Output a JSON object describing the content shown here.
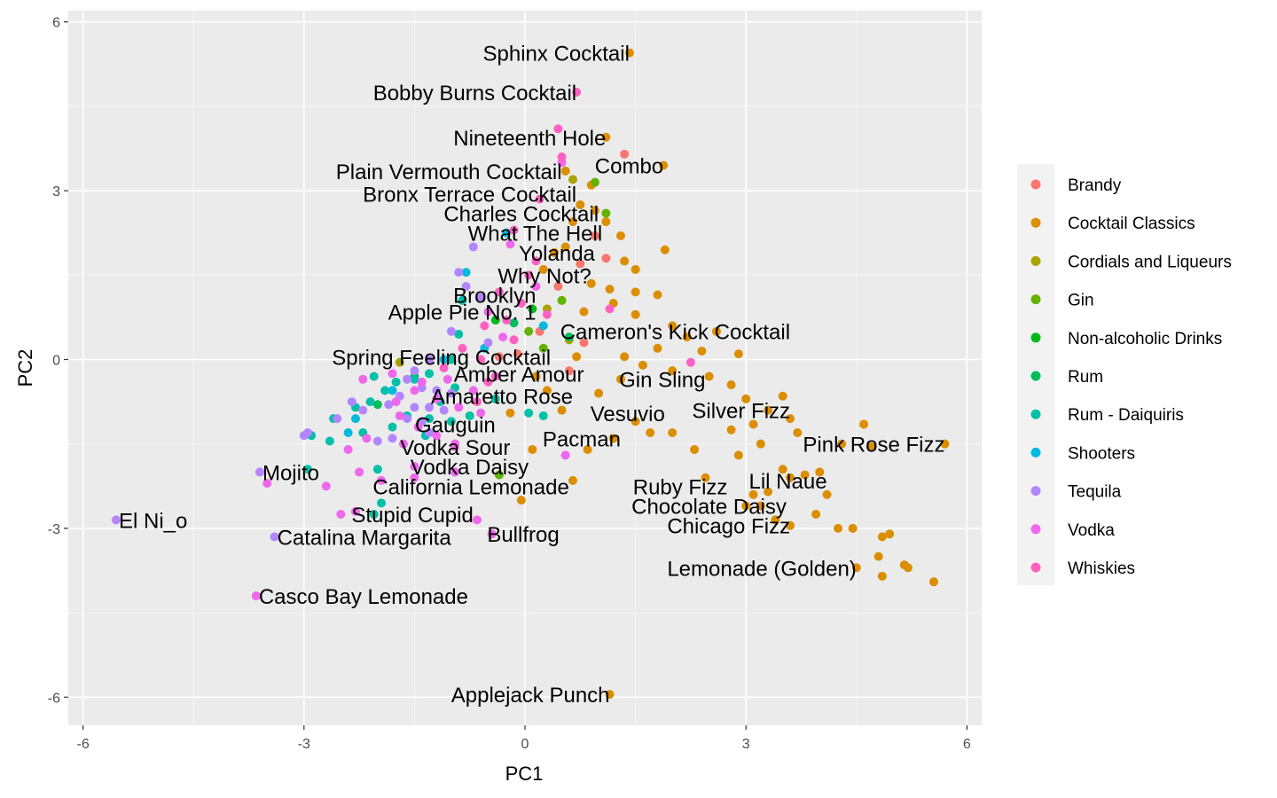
{
  "chart_data": {
    "type": "scatter",
    "title": "",
    "xlabel": "PC1",
    "ylabel": "PC2",
    "xlim": [
      -6.2,
      6.2
    ],
    "ylim": [
      -6.5,
      6.2
    ],
    "x_ticks": [
      -6,
      -3,
      0,
      3,
      6
    ],
    "y_ticks": [
      -6,
      -3,
      0,
      3,
      6
    ],
    "grid": true,
    "legend_position": "right",
    "series": [
      {
        "name": "Brandy",
        "color": "#F8766D",
        "points": [
          [
            1.35,
            3.65
          ],
          [
            0.95,
            2.2
          ],
          [
            0.75,
            1.7
          ],
          [
            0.45,
            1.3
          ],
          [
            0.8,
            0.3
          ],
          [
            -0.35,
            0.05
          ],
          [
            0.6,
            -0.2
          ],
          [
            1.1,
            1.8
          ],
          [
            0.2,
            0.5
          ],
          [
            -0.1,
            0.1
          ]
        ]
      },
      {
        "name": "Cocktail Classics",
        "color": "#DB8E00",
        "points": [
          [
            1.42,
            5.45
          ],
          [
            1.1,
            3.95
          ],
          [
            1.88,
            3.45
          ],
          [
            0.55,
            3.35
          ],
          [
            0.9,
            3.1
          ],
          [
            1.35,
            1.75
          ],
          [
            0.75,
            2.75
          ],
          [
            1.9,
            1.95
          ],
          [
            1.3,
            2.2
          ],
          [
            1.5,
            1.6
          ],
          [
            1.8,
            1.15
          ],
          [
            1.5,
            1.2
          ],
          [
            1.2,
            1.0
          ],
          [
            0.8,
            0.85
          ],
          [
            1.5,
            0.8
          ],
          [
            2.0,
            0.6
          ],
          [
            2.6,
            0.5
          ],
          [
            2.2,
            0.4
          ],
          [
            1.8,
            0.2
          ],
          [
            2.4,
            0.15
          ],
          [
            2.9,
            0.1
          ],
          [
            1.35,
            0.05
          ],
          [
            1.6,
            -0.1
          ],
          [
            2.0,
            -0.2
          ],
          [
            2.5,
            -0.3
          ],
          [
            2.8,
            -0.45
          ],
          [
            3.0,
            -0.7
          ],
          [
            3.5,
            -0.65
          ],
          [
            3.3,
            -0.9
          ],
          [
            3.6,
            -1.05
          ],
          [
            3.7,
            -1.3
          ],
          [
            4.6,
            -1.15
          ],
          [
            5.7,
            -1.5
          ],
          [
            3.2,
            -1.5
          ],
          [
            4.3,
            -1.5
          ],
          [
            4.7,
            -1.55
          ],
          [
            3.5,
            -1.95
          ],
          [
            3.6,
            -2.1
          ],
          [
            3.3,
            -2.35
          ],
          [
            3.1,
            -2.4
          ],
          [
            4.1,
            -2.4
          ],
          [
            4.0,
            -2.0
          ],
          [
            3.2,
            -2.6
          ],
          [
            3.4,
            -2.85
          ],
          [
            3.95,
            -2.75
          ],
          [
            4.25,
            -3.0
          ],
          [
            4.45,
            -3.0
          ],
          [
            4.85,
            -3.15
          ],
          [
            4.95,
            -3.1
          ],
          [
            4.8,
            -3.5
          ],
          [
            5.15,
            -3.65
          ],
          [
            5.2,
            -3.7
          ],
          [
            4.5,
            -3.7
          ],
          [
            4.85,
            -3.85
          ],
          [
            5.55,
            -3.95
          ],
          [
            3.6,
            -2.95
          ],
          [
            1.15,
            -5.95
          ],
          [
            -0.05,
            -2.5
          ],
          [
            0.65,
            -2.15
          ],
          [
            0.1,
            -1.6
          ],
          [
            1.5,
            -1.1
          ],
          [
            1.0,
            -0.6
          ],
          [
            0.5,
            -0.9
          ],
          [
            2.0,
            -1.3
          ],
          [
            2.3,
            -1.6
          ],
          [
            1.7,
            -1.3
          ],
          [
            0.3,
            -0.55
          ],
          [
            0.7,
            0.05
          ],
          [
            0.9,
            1.35
          ],
          [
            0.55,
            2.0
          ],
          [
            1.1,
            2.45
          ],
          [
            0.95,
            2.65
          ],
          [
            0.65,
            2.45
          ],
          [
            0.4,
            1.9
          ],
          [
            0.25,
            1.6
          ],
          [
            1.15,
            1.25
          ],
          [
            2.8,
            -1.25
          ],
          [
            2.9,
            -1.7
          ],
          [
            3.1,
            -1.15
          ],
          [
            1.3,
            -0.35
          ],
          [
            0.15,
            -0.3
          ],
          [
            -0.2,
            -0.95
          ],
          [
            0.85,
            -1.6
          ],
          [
            1.2,
            -1.4
          ],
          [
            2.45,
            -2.1
          ],
          [
            3.0,
            -2.6
          ],
          [
            3.8,
            -2.05
          ]
        ]
      },
      {
        "name": "Cordials and Liqueurs",
        "color": "#AAA200",
        "points": [
          [
            0.65,
            3.2
          ],
          [
            0.3,
            0.9
          ],
          [
            0.6,
            0.35
          ],
          [
            -1.7,
            -0.05
          ]
        ]
      },
      {
        "name": "Gin",
        "color": "#64B200",
        "points": [
          [
            0.95,
            3.15
          ],
          [
            1.1,
            2.6
          ],
          [
            0.5,
            1.05
          ],
          [
            -0.35,
            -2.05
          ],
          [
            0.05,
            0.5
          ],
          [
            0.25,
            0.2
          ]
        ]
      },
      {
        "name": "Non-alcoholic Drinks",
        "color": "#00B81B",
        "points": [
          [
            -0.4,
            0.7
          ],
          [
            0.1,
            0.9
          ]
        ]
      },
      {
        "name": "Rum",
        "color": "#00BD5C",
        "points": [
          [
            0.6,
            0.4
          ],
          [
            -0.15,
            0.65
          ],
          [
            -2.0,
            -0.8
          ],
          [
            -1.5,
            -0.3
          ]
        ]
      },
      {
        "name": "Rum - Daiquiris",
        "color": "#00C1A7",
        "points": [
          [
            -0.85,
            1.05
          ],
          [
            -0.9,
            0.45
          ],
          [
            -1.0,
            0.0
          ],
          [
            -1.3,
            -0.25
          ],
          [
            -1.5,
            -0.35
          ],
          [
            -1.75,
            -0.4
          ],
          [
            -1.9,
            -0.55
          ],
          [
            -2.1,
            -0.75
          ],
          [
            -2.3,
            -0.85
          ],
          [
            -2.6,
            -1.05
          ],
          [
            -2.9,
            -1.35
          ],
          [
            -2.65,
            -1.45
          ],
          [
            -2.2,
            -1.3
          ],
          [
            -1.8,
            -1.2
          ],
          [
            -1.6,
            -1.0
          ],
          [
            -1.3,
            -1.05
          ],
          [
            -1.0,
            -1.1
          ],
          [
            -0.75,
            -1.0
          ],
          [
            -2.0,
            -1.95
          ],
          [
            -1.95,
            -2.55
          ],
          [
            -2.05,
            -2.75
          ],
          [
            -2.95,
            -1.95
          ],
          [
            -0.95,
            -0.5
          ],
          [
            -0.4,
            -0.7
          ],
          [
            -1.15,
            -0.75
          ],
          [
            -1.35,
            -1.35
          ],
          [
            0.05,
            -0.95
          ],
          [
            0.25,
            -1.0
          ],
          [
            -2.05,
            -0.3
          ]
        ]
      },
      {
        "name": "Shooters",
        "color": "#00BADE",
        "points": [
          [
            -0.25,
            2.25
          ],
          [
            -0.8,
            1.55
          ],
          [
            0.25,
            0.6
          ],
          [
            -1.1,
            0.0
          ],
          [
            -1.8,
            -0.55
          ],
          [
            -2.3,
            -1.05
          ],
          [
            -2.4,
            -1.3
          ],
          [
            -0.55,
            0.2
          ]
        ]
      },
      {
        "name": "Tequila",
        "color": "#B385FF",
        "points": [
          [
            -0.7,
            2.0
          ],
          [
            -0.9,
            1.55
          ],
          [
            -0.8,
            1.3
          ],
          [
            -0.6,
            1.1
          ],
          [
            -1.0,
            0.5
          ],
          [
            -0.5,
            0.3
          ],
          [
            -1.3,
            0.0
          ],
          [
            -1.5,
            -0.2
          ],
          [
            -1.6,
            -0.35
          ],
          [
            -1.4,
            -0.5
          ],
          [
            -1.2,
            -0.55
          ],
          [
            -1.0,
            -0.6
          ],
          [
            -1.7,
            -0.65
          ],
          [
            -1.85,
            -0.8
          ],
          [
            -1.5,
            -0.85
          ],
          [
            -1.3,
            -0.85
          ],
          [
            -1.1,
            -0.9
          ],
          [
            -1.6,
            -1.05
          ],
          [
            -1.4,
            -1.1
          ],
          [
            -2.2,
            -0.9
          ],
          [
            -2.35,
            -0.75
          ],
          [
            -2.55,
            -1.05
          ],
          [
            -2.95,
            -1.3
          ],
          [
            -3.0,
            -1.35
          ],
          [
            -3.6,
            -2.0
          ],
          [
            -5.55,
            -2.85
          ],
          [
            -3.4,
            -3.15
          ],
          [
            -2.0,
            -1.45
          ],
          [
            -1.8,
            -1.4
          ],
          [
            -1.3,
            -1.3
          ]
        ]
      },
      {
        "name": "Vodka",
        "color": "#EF67EB",
        "points": [
          [
            0.5,
            3.5
          ],
          [
            -0.2,
            2.05
          ],
          [
            0.15,
            1.3
          ],
          [
            -0.5,
            0.85
          ],
          [
            -0.3,
            0.4
          ],
          [
            -1.8,
            -0.25
          ],
          [
            -1.5,
            -0.55
          ],
          [
            -1.2,
            -0.7
          ],
          [
            -0.9,
            -0.85
          ],
          [
            -0.6,
            -0.95
          ],
          [
            -1.7,
            -1.0
          ],
          [
            -1.45,
            -1.2
          ],
          [
            -1.2,
            -1.35
          ],
          [
            -0.95,
            -1.5
          ],
          [
            -1.65,
            -1.5
          ],
          [
            -2.15,
            -1.4
          ],
          [
            -2.4,
            -1.6
          ],
          [
            -2.25,
            -2.0
          ],
          [
            -1.95,
            -2.15
          ],
          [
            -3.5,
            -2.2
          ],
          [
            -2.7,
            -2.25
          ],
          [
            -2.3,
            -2.7
          ],
          [
            -2.5,
            -2.75
          ],
          [
            -3.65,
            -4.2
          ],
          [
            -1.5,
            -1.9
          ],
          [
            -1.5,
            -2.1
          ],
          [
            -0.95,
            -2.0
          ],
          [
            -0.45,
            -3.1
          ],
          [
            -0.65,
            -2.85
          ],
          [
            -0.95,
            -1.55
          ],
          [
            0.55,
            -1.7
          ],
          [
            -2.2,
            -0.35
          ],
          [
            -1.4,
            -0.4
          ],
          [
            -1.05,
            -0.35
          ],
          [
            -0.7,
            -0.55
          ],
          [
            -1.75,
            -0.75
          ]
        ]
      },
      {
        "name": "Whiskies",
        "color": "#FF61C3",
        "points": [
          [
            0.7,
            4.75
          ],
          [
            0.45,
            4.1
          ],
          [
            0.5,
            3.6
          ],
          [
            0.2,
            2.85
          ],
          [
            -0.15,
            2.3
          ],
          [
            0.15,
            1.75
          ],
          [
            0.05,
            1.5
          ],
          [
            -0.35,
            1.2
          ],
          [
            -0.05,
            1.0
          ],
          [
            -0.25,
            0.7
          ],
          [
            0.3,
            0.8
          ],
          [
            -0.55,
            0.6
          ],
          [
            -0.15,
            0.35
          ],
          [
            1.15,
            0.9
          ],
          [
            2.25,
            -0.05
          ],
          [
            -0.6,
            0.0
          ],
          [
            -0.4,
            -0.3
          ],
          [
            -0.65,
            -0.75
          ],
          [
            -1.1,
            -0.15
          ],
          [
            -0.85,
            0.2
          ],
          [
            -0.5,
            -0.4
          ]
        ]
      }
    ],
    "annotations": [
      {
        "text": "Sphinx Cocktail",
        "x": 1.42,
        "y": 5.45,
        "align": "end"
      },
      {
        "text": "Bobby Burns Cocktail",
        "x": 0.7,
        "y": 4.75,
        "align": "end"
      },
      {
        "text": "Nineteenth Hole",
        "x": 1.1,
        "y": 3.95,
        "align": "end"
      },
      {
        "text": "Combo",
        "x": 1.88,
        "y": 3.45,
        "align": "end"
      },
      {
        "text": "Plain Vermouth Cocktail",
        "x": 0.5,
        "y": 3.35,
        "align": "end"
      },
      {
        "text": "Bronx Terrace Cocktail",
        "x": 0.7,
        "y": 2.95,
        "align": "end"
      },
      {
        "text": "Charles Cocktail",
        "x": 1.0,
        "y": 2.6,
        "align": "end"
      },
      {
        "text": "What The Hell",
        "x": 1.05,
        "y": 2.25,
        "align": "end"
      },
      {
        "text": "Yolanda",
        "x": 0.95,
        "y": 1.9,
        "align": "end"
      },
      {
        "text": "Why Not?",
        "x": 0.9,
        "y": 1.5,
        "align": "end"
      },
      {
        "text": "Brooklyn",
        "x": 0.15,
        "y": 1.15,
        "align": "end"
      },
      {
        "text": "Apple Pie No. 1",
        "x": 0.15,
        "y": 0.85,
        "align": "end"
      },
      {
        "text": "Cameron's Kick Cocktail",
        "x": 3.6,
        "y": 0.5,
        "align": "end"
      },
      {
        "text": "Spring Feeling Cocktail",
        "x": 0.35,
        "y": 0.05,
        "align": "end"
      },
      {
        "text": "Amber Amour",
        "x": 0.8,
        "y": -0.25,
        "align": "end"
      },
      {
        "text": "Gin Sling",
        "x": 2.45,
        "y": -0.35,
        "align": "end"
      },
      {
        "text": "Amaretto Rose",
        "x": 0.65,
        "y": -0.65,
        "align": "end"
      },
      {
        "text": "Vesuvio",
        "x": 1.9,
        "y": -0.95,
        "align": "end"
      },
      {
        "text": "Silver Fizz",
        "x": 3.6,
        "y": -0.9,
        "align": "end"
      },
      {
        "text": "Gauguin",
        "x": -0.4,
        "y": -1.15,
        "align": "end"
      },
      {
        "text": "Pink Rose Fizz",
        "x": 5.7,
        "y": -1.5,
        "align": "end"
      },
      {
        "text": "Pacman",
        "x": 1.3,
        "y": -1.4,
        "align": "end"
      },
      {
        "text": "Vodka Sour",
        "x": -0.2,
        "y": -1.55,
        "align": "end"
      },
      {
        "text": "Vodka Daisy",
        "x": 0.05,
        "y": -1.9,
        "align": "end"
      },
      {
        "text": "Mojito",
        "x": -3.6,
        "y": -2.0,
        "align": "start"
      },
      {
        "text": "Lil Naue",
        "x": 4.1,
        "y": -2.15,
        "align": "end"
      },
      {
        "text": "Ruby Fizz",
        "x": 2.75,
        "y": -2.25,
        "align": "end"
      },
      {
        "text": "California Lemonade",
        "x": 0.6,
        "y": -2.25,
        "align": "end"
      },
      {
        "text": "Chocolate Daisy",
        "x": 3.55,
        "y": -2.6,
        "align": "end"
      },
      {
        "text": "Stupid Cupid",
        "x": -0.7,
        "y": -2.75,
        "align": "end"
      },
      {
        "text": "El Ni_o",
        "x": -5.55,
        "y": -2.85,
        "align": "start"
      },
      {
        "text": "Chicago Fizz",
        "x": 3.6,
        "y": -2.95,
        "align": "end"
      },
      {
        "text": "Bullfrog",
        "x": -0.55,
        "y": -3.1,
        "align": "start"
      },
      {
        "text": "Catalina Margarita",
        "x": -3.4,
        "y": -3.15,
        "align": "start"
      },
      {
        "text": "Lemonade (Golden)",
        "x": 4.5,
        "y": -3.7,
        "align": "end"
      },
      {
        "text": "Casco Bay Lemonade",
        "x": -3.65,
        "y": -4.2,
        "align": "start"
      },
      {
        "text": "Applejack Punch",
        "x": 1.15,
        "y": -5.95,
        "align": "end"
      }
    ]
  }
}
